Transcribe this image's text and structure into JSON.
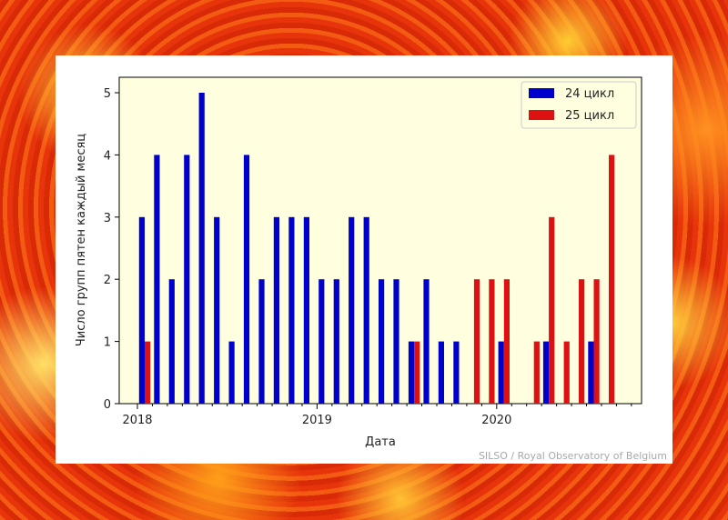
{
  "credit": "SILSO / Royal Observatory of Belgium",
  "colors": {
    "series_24": "#0000cc",
    "series_25": "#dd1111",
    "plot_bg": "#ffffe0"
  },
  "chart_data": {
    "type": "bar",
    "xlabel": "Дата",
    "ylabel": "Число групп пятен каждый месяц",
    "ylim": [
      0,
      5
    ],
    "yticks": [
      "0",
      "1",
      "2",
      "3",
      "4",
      "5"
    ],
    "x_tick_labels": [
      "2018",
      "2019",
      "2020"
    ],
    "legend_position": "top-right",
    "months": [
      "2018-01",
      "2018-02",
      "2018-03",
      "2018-04",
      "2018-05",
      "2018-06",
      "2018-07",
      "2018-08",
      "2018-09",
      "2018-10",
      "2018-11",
      "2018-12",
      "2019-01",
      "2019-02",
      "2019-03",
      "2019-04",
      "2019-05",
      "2019-06",
      "2019-07",
      "2019-08",
      "2019-09",
      "2019-10",
      "2019-11",
      "2019-12",
      "2020-01",
      "2020-02",
      "2020-03",
      "2020-04",
      "2020-05",
      "2020-06",
      "2020-07",
      "2020-08",
      "2020-09",
      "2020-10"
    ],
    "series": [
      {
        "name": "24 цикл",
        "values": [
          3,
          4,
          2,
          4,
          5,
          3,
          1,
          4,
          2,
          3,
          3,
          3,
          2,
          2,
          3,
          3,
          2,
          2,
          1,
          2,
          1,
          1,
          0,
          0,
          1,
          0,
          0,
          1,
          0,
          0,
          1,
          0,
          0,
          0
        ]
      },
      {
        "name": "25 цикл",
        "values": [
          1,
          0,
          0,
          0,
          0,
          0,
          0,
          0,
          0,
          0,
          0,
          0,
          0,
          0,
          0,
          0,
          0,
          0,
          1,
          0,
          0,
          0,
          2,
          2,
          2,
          0,
          1,
          3,
          1,
          2,
          2,
          4,
          0,
          0
        ]
      }
    ]
  }
}
